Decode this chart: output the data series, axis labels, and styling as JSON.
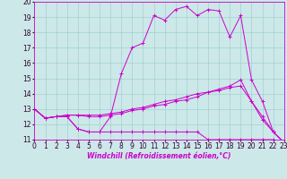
{
  "xlabel": "Windchill (Refroidissement éolien,°C)",
  "xlim": [
    0,
    23
  ],
  "ylim": [
    11,
    20
  ],
  "xticks": [
    0,
    1,
    2,
    3,
    4,
    5,
    6,
    7,
    8,
    9,
    10,
    11,
    12,
    13,
    14,
    15,
    16,
    17,
    18,
    19,
    20,
    21,
    22,
    23
  ],
  "yticks": [
    11,
    12,
    13,
    14,
    15,
    16,
    17,
    18,
    19,
    20
  ],
  "bg_color": "#cce8e8",
  "line_color": "#cc00cc",
  "grid_color": "#99cccc",
  "line1_x": [
    0,
    1,
    2,
    3,
    4,
    5,
    6,
    7,
    8,
    9,
    10,
    11,
    12,
    13,
    14,
    15,
    16,
    17,
    18,
    19,
    20,
    21,
    22,
    23
  ],
  "line1_y": [
    13.0,
    12.4,
    12.5,
    12.5,
    11.7,
    11.5,
    11.5,
    12.5,
    15.3,
    17.0,
    17.3,
    19.1,
    18.8,
    19.5,
    19.7,
    19.1,
    19.5,
    19.4,
    17.7,
    19.1,
    14.9,
    13.5,
    11.5,
    10.8
  ],
  "line2_x": [
    0,
    1,
    2,
    3,
    4,
    5,
    6,
    7,
    8,
    9,
    10,
    11,
    12,
    13,
    14,
    15,
    16,
    17,
    18,
    19,
    20,
    21,
    22,
    23
  ],
  "line2_y": [
    13.0,
    12.4,
    12.5,
    12.5,
    11.7,
    11.5,
    11.5,
    11.5,
    11.5,
    11.5,
    11.5,
    11.5,
    11.5,
    11.5,
    11.5,
    11.5,
    11.0,
    11.0,
    11.0,
    11.0,
    11.0,
    11.0,
    11.0,
    10.8
  ],
  "line3_x": [
    0,
    1,
    2,
    3,
    4,
    5,
    6,
    7,
    8,
    9,
    10,
    11,
    12,
    13,
    14,
    15,
    16,
    17,
    18,
    19,
    20,
    21,
    22,
    23
  ],
  "line3_y": [
    13.0,
    12.4,
    12.5,
    12.6,
    12.6,
    12.5,
    12.5,
    12.6,
    12.7,
    12.9,
    13.0,
    13.2,
    13.3,
    13.5,
    13.6,
    13.8,
    14.1,
    14.3,
    14.5,
    14.9,
    13.5,
    12.5,
    11.5,
    10.8
  ],
  "line4_x": [
    0,
    1,
    2,
    3,
    4,
    5,
    6,
    7,
    8,
    9,
    10,
    11,
    12,
    13,
    14,
    15,
    16,
    17,
    18,
    19,
    20,
    21,
    22,
    23
  ],
  "line4_y": [
    13.0,
    12.4,
    12.5,
    12.6,
    12.6,
    12.6,
    12.6,
    12.7,
    12.8,
    13.0,
    13.1,
    13.3,
    13.5,
    13.6,
    13.8,
    14.0,
    14.1,
    14.2,
    14.4,
    14.5,
    13.5,
    12.3,
    11.5,
    10.8
  ],
  "tick_fontsize": 5.5,
  "xlabel_fontsize": 5.5
}
